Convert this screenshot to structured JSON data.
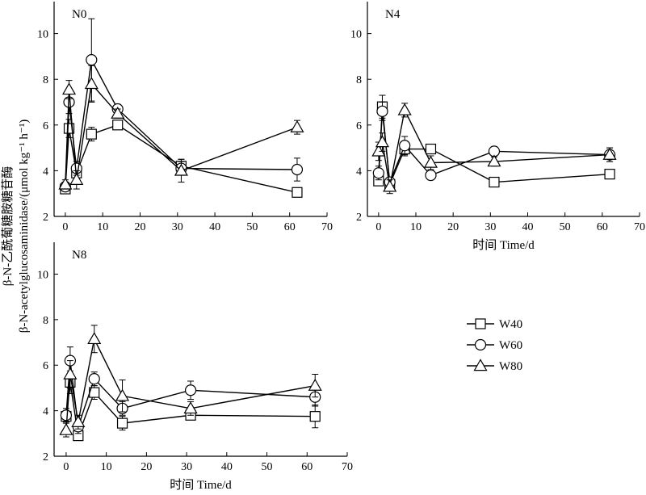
{
  "chart_data": {
    "type": "line",
    "ylabel_cn": "β-N-乙酰葡糖胺糖苷酶",
    "ylabel_en": "β-N-acetylglucosaminidase/(μmol kg⁻¹ h⁻¹)",
    "xlabel": "时间 Time/d",
    "x_ticks": [
      0,
      10,
      20,
      30,
      40,
      50,
      60,
      70
    ],
    "y_ticks": [
      2,
      4,
      6,
      8,
      10
    ],
    "xlim": [
      -3,
      70
    ],
    "ylim": [
      2,
      11.4
    ],
    "legend": {
      "placement": "right",
      "entries": [
        {
          "name": "W40",
          "marker": "square"
        },
        {
          "name": "W60",
          "marker": "circle"
        },
        {
          "name": "W80",
          "marker": "triangle"
        }
      ]
    },
    "panels": [
      {
        "label": "N0",
        "series": [
          {
            "name": "W40",
            "marker": "square",
            "x": [
              0,
              1,
              3,
              7,
              14,
              31,
              62
            ],
            "y": [
              3.2,
              5.85,
              3.9,
              5.6,
              6.0,
              4.2,
              3.05
            ],
            "err": [
              0.15,
              0.4,
              0.3,
              0.3,
              0.2,
              0.3,
              0.2
            ]
          },
          {
            "name": "W60",
            "marker": "circle",
            "x": [
              0,
              1,
              3,
              7,
              14,
              31,
              62
            ],
            "y": [
              3.3,
              7.0,
              4.1,
              8.85,
              6.7,
              4.1,
              4.05
            ],
            "err": [
              0.2,
              0.5,
              0.3,
              1.8,
              0.2,
              0.3,
              0.5
            ]
          },
          {
            "name": "W80",
            "marker": "triangle",
            "x": [
              0,
              1,
              3,
              7,
              14,
              31,
              62
            ],
            "y": [
              3.4,
              7.55,
              3.6,
              7.8,
              6.5,
              4.0,
              5.9
            ],
            "err": [
              0.2,
              0.4,
              0.4,
              0.8,
              0.2,
              0.5,
              0.3
            ]
          }
        ]
      },
      {
        "label": "N4",
        "series": [
          {
            "name": "W40",
            "marker": "square",
            "x": [
              0,
              1,
              3,
              7,
              14,
              31,
              62
            ],
            "y": [
              3.55,
              6.8,
              3.4,
              4.95,
              4.95,
              3.5,
              3.85
            ],
            "err": [
              0.2,
              0.5,
              0.2,
              0.3,
              0.2,
              0.2,
              0.2
            ]
          },
          {
            "name": "W60",
            "marker": "circle",
            "x": [
              0,
              1,
              3,
              7,
              14,
              31,
              62
            ],
            "y": [
              3.9,
              6.6,
              3.5,
              5.1,
              3.8,
              4.85,
              4.7
            ],
            "err": [
              0.3,
              0.4,
              0.2,
              0.4,
              0.2,
              0.2,
              0.3
            ]
          },
          {
            "name": "W80",
            "marker": "triangle",
            "x": [
              0,
              1,
              3,
              7,
              14,
              31,
              62
            ],
            "y": [
              4.85,
              5.25,
              3.3,
              6.65,
              4.35,
              4.4,
              4.7
            ],
            "err": [
              0.4,
              0.4,
              0.3,
              0.3,
              0.3,
              0.2,
              0.3
            ]
          }
        ]
      },
      {
        "label": "N8",
        "series": [
          {
            "name": "W40",
            "marker": "square",
            "x": [
              0,
              1,
              3,
              7,
              14,
              31,
              62
            ],
            "y": [
              3.75,
              5.25,
              2.9,
              4.8,
              3.45,
              3.8,
              3.75
            ],
            "err": [
              0.2,
              0.5,
              0.1,
              0.3,
              0.3,
              0.2,
              0.5
            ]
          },
          {
            "name": "W60",
            "marker": "circle",
            "x": [
              0,
              1,
              3,
              7,
              14,
              31,
              62
            ],
            "y": [
              3.8,
              6.2,
              3.3,
              5.4,
              4.1,
              4.9,
              4.6
            ],
            "err": [
              0.3,
              0.6,
              0.3,
              0.3,
              0.3,
              0.4,
              0.4
            ]
          },
          {
            "name": "W80",
            "marker": "triangle",
            "x": [
              0,
              1,
              3,
              7,
              14,
              31,
              62
            ],
            "y": [
              3.15,
              5.6,
              3.5,
              7.15,
              4.65,
              4.1,
              5.1
            ],
            "err": [
              0.3,
              0.6,
              0.3,
              0.6,
              0.7,
              0.3,
              0.5
            ]
          }
        ]
      }
    ]
  }
}
